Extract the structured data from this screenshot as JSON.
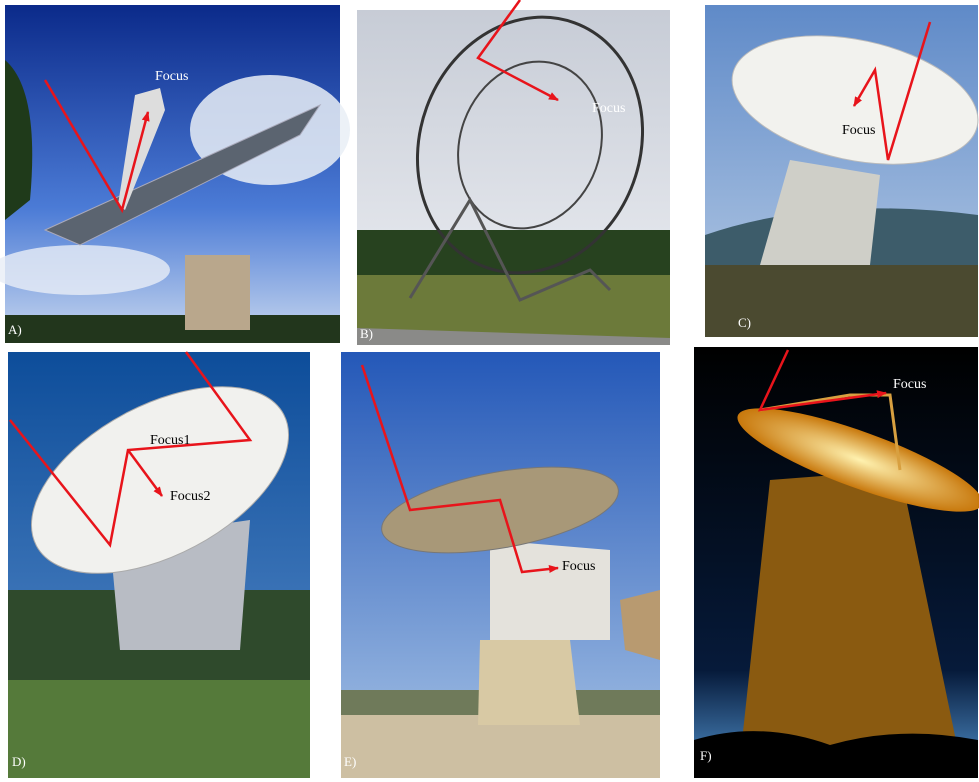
{
  "panels": [
    {
      "label": "A)",
      "annotations": [
        "Focus"
      ]
    },
    {
      "label": "B)",
      "annotations": [
        "Focus"
      ]
    },
    {
      "label": "C)",
      "annotations": [
        "Focus"
      ]
    },
    {
      "label": "D)",
      "annotations": [
        "Focus1",
        "Focus2"
      ]
    },
    {
      "label": "E)",
      "annotations": [
        "Focus"
      ]
    },
    {
      "label": "F)",
      "annotations": [
        "Focus"
      ]
    }
  ]
}
